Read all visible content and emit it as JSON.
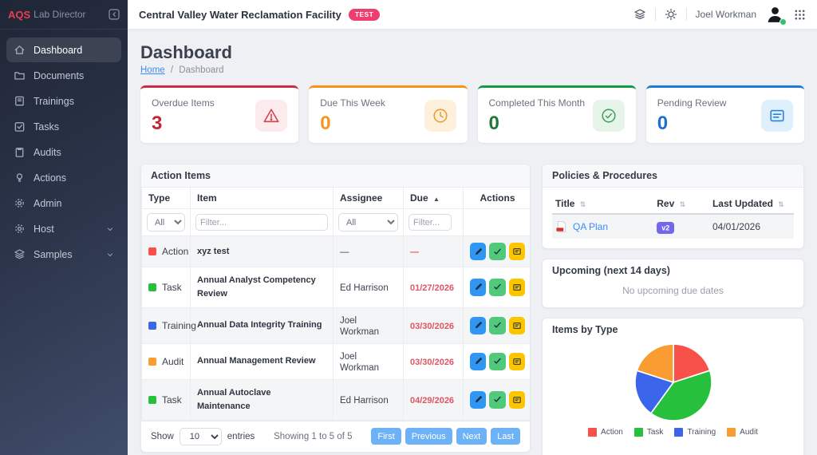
{
  "sidebar": {
    "brand": {
      "aqs": "AQS",
      "suffix": "Lab Director"
    },
    "items": [
      {
        "label": "Dashboard",
        "icon": "home-icon",
        "active": true
      },
      {
        "label": "Documents",
        "icon": "folder-icon"
      },
      {
        "label": "Trainings",
        "icon": "journal-icon"
      },
      {
        "label": "Tasks",
        "icon": "check-square-icon"
      },
      {
        "label": "Audits",
        "icon": "clipboard-icon"
      },
      {
        "label": "Actions",
        "icon": "lightbulb-icon"
      },
      {
        "label": "Admin",
        "icon": "gear-icon"
      },
      {
        "label": "Host",
        "icon": "gear-icon",
        "expandable": true
      },
      {
        "label": "Samples",
        "icon": "layers-icon",
        "expandable": true
      }
    ]
  },
  "topbar": {
    "facility": "Central Valley Water Reclamation Facility",
    "badge": "TEST",
    "user": "Joel Workman"
  },
  "page": {
    "title": "Dashboard",
    "breadcrumb": {
      "home": "Home",
      "separator": "/",
      "current": "Dashboard"
    }
  },
  "stats": [
    {
      "label": "Overdue Items",
      "value": "3",
      "accent": "#d02c40",
      "value_color": "#c22535",
      "icon": "warning-triangle-icon",
      "icon_bg": "#fcebec",
      "icon_color": "#d9404e"
    },
    {
      "label": "Due This Week",
      "value": "0",
      "accent": "#f7941d",
      "value_color": "#f7941d",
      "icon": "clock-icon",
      "icon_bg": "#fdf1dd",
      "icon_color": "#f0992f"
    },
    {
      "label": "Completed This Month",
      "value": "0",
      "accent": "#119c46",
      "value_color": "#20763a",
      "icon": "check-circle-icon",
      "icon_bg": "#e7f4ea",
      "icon_color": "#43a15c"
    },
    {
      "label": "Pending Review",
      "value": "0",
      "accent": "#1c7cd6",
      "value_color": "#1f6fd0",
      "icon": "card-text-icon",
      "icon_bg": "#def0fb",
      "icon_color": "#2f80d8"
    }
  ],
  "action_items": {
    "title": "Action Items",
    "columns": {
      "type": "Type",
      "item": "Item",
      "assignee": "Assignee",
      "due": "Due",
      "actions": "Actions"
    },
    "due_sort_arrow": "▲",
    "filters": {
      "type_all": "All",
      "item_placeholder": "Filter...",
      "assignee_all": "All",
      "due_placeholder": "Filter..."
    },
    "rows": [
      {
        "type": "Action",
        "type_color": "#f8514a",
        "item": "xyz test",
        "assignee": "—",
        "due": "—"
      },
      {
        "type": "Task",
        "type_color": "#26c03c",
        "item": "Annual Analyst Competency Review",
        "assignee": "Ed Harrison",
        "due": "01/27/2026"
      },
      {
        "type": "Training",
        "type_color": "#3b65ea",
        "item": "Annual Data Integrity Training",
        "assignee": "Joel Workman",
        "due": "03/30/2026"
      },
      {
        "type": "Audit",
        "type_color": "#f99d33",
        "item": "Annual Management Review",
        "assignee": "Joel Workman",
        "due": "03/30/2026"
      },
      {
        "type": "Task",
        "type_color": "#26c03c",
        "item": "Annual Autoclave Maintenance",
        "assignee": "Ed Harrison",
        "due": "04/29/2026"
      }
    ],
    "footer": {
      "show_label": "Show",
      "page_size": "10",
      "entries_label": "entries",
      "status": "Showing 1 to 5 of 5",
      "buttons": [
        "First",
        "Previous",
        "Next",
        "Last"
      ]
    }
  },
  "policies": {
    "title": "Policies & Procedures",
    "columns": {
      "title": "Title",
      "rev": "Rev",
      "updated": "Last Updated"
    },
    "sort_glyph": "⇅",
    "rows": [
      {
        "title": "QA Plan",
        "rev": "v2",
        "updated": "04/01/2026"
      }
    ]
  },
  "upcoming": {
    "title": "Upcoming (next 14 days)",
    "empty_text": "No upcoming due dates"
  },
  "chart_data": {
    "type": "pie",
    "title": "Items by Type",
    "categories": [
      "Action",
      "Task",
      "Training",
      "Audit"
    ],
    "values": [
      1,
      2,
      1,
      1
    ],
    "colors": [
      "#f8514a",
      "#26c03c",
      "#3b65ea",
      "#f99d33"
    ],
    "legend_position": "bottom"
  }
}
